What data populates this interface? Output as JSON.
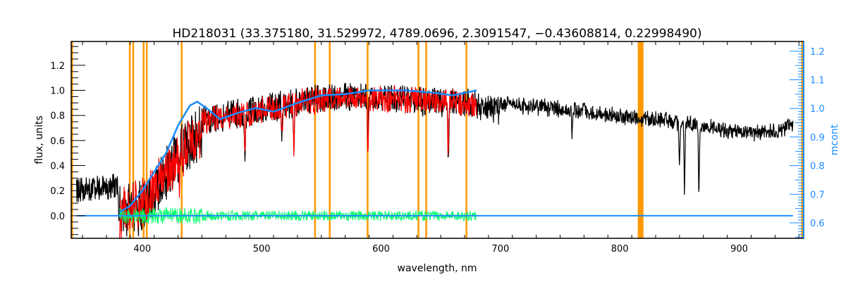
{
  "chart_data": {
    "type": "line",
    "title": "HD218031   (33.375180, 31.529972, 4789.0696, 2.3091547, −0.43608814, 0.22998490)",
    "xlabel": "wavelength, nm",
    "ylabel": "flux, units",
    "y2label": "mcont",
    "xlim": [
      340.5,
      954
    ],
    "ylim": [
      -0.18,
      1.39
    ],
    "y2lim": [
      0.546,
      1.234
    ],
    "xticks": [
      400,
      500,
      600,
      700,
      800,
      900
    ],
    "yticks": [
      0.0,
      0.2,
      0.4,
      0.6,
      0.8,
      1.0,
      1.2
    ],
    "y2ticks": [
      0.6,
      0.7,
      0.8,
      0.9,
      1.0,
      1.1,
      1.2
    ],
    "colors": {
      "observed": "#000000",
      "model": "#ff0000",
      "residual": "#00ff66",
      "continuum": "#1a8cff",
      "masks": "#ff9900",
      "axis2": "#1a8cff"
    },
    "series": [
      {
        "name": "observed flux",
        "range": [
          345,
          945
        ],
        "envelope": [
          [
            345,
            0.2
          ],
          [
            380,
            0.24
          ],
          [
            400,
            0.32
          ],
          [
            420,
            0.55
          ],
          [
            435,
            0.75
          ],
          [
            450,
            0.88
          ],
          [
            480,
            0.92
          ],
          [
            520,
            1.0
          ],
          [
            560,
            1.06
          ],
          [
            600,
            1.06
          ],
          [
            640,
            1.03
          ],
          [
            680,
            0.99
          ],
          [
            720,
            0.93
          ],
          [
            760,
            0.9
          ],
          [
            800,
            0.85
          ],
          [
            850,
            0.8
          ],
          [
            900,
            0.72
          ],
          [
            930,
            0.72
          ],
          [
            945,
            0.78
          ]
        ]
      },
      {
        "name": "model flux",
        "range": [
          381,
          680
        ],
        "envelope": [
          [
            381,
            0.22
          ],
          [
            400,
            0.3
          ],
          [
            420,
            0.53
          ],
          [
            435,
            0.73
          ],
          [
            450,
            0.86
          ],
          [
            480,
            0.9
          ],
          [
            520,
            0.98
          ],
          [
            560,
            1.04
          ],
          [
            600,
            1.04
          ],
          [
            640,
            1.02
          ],
          [
            680,
            0.98
          ]
        ]
      },
      {
        "name": "residual",
        "range": [
          381,
          680
        ],
        "center": 0.0,
        "amplitude": 0.05
      },
      {
        "name": "continuum (mcont)",
        "points": [
          [
            381,
            0.03
          ],
          [
            390,
            0.08
          ],
          [
            400,
            0.2
          ],
          [
            410,
            0.35
          ],
          [
            420,
            0.5
          ],
          [
            430,
            0.72
          ],
          [
            440,
            0.88
          ],
          [
            446,
            0.91
          ],
          [
            455,
            0.85
          ],
          [
            465,
            0.77
          ],
          [
            480,
            0.82
          ],
          [
            495,
            0.86
          ],
          [
            510,
            0.83
          ],
          [
            530,
            0.9
          ],
          [
            550,
            0.96
          ],
          [
            570,
            0.97
          ],
          [
            590,
            1.0
          ],
          [
            620,
            1.0
          ],
          [
            645,
            0.98
          ],
          [
            660,
            0.96
          ],
          [
            670,
            0.98
          ],
          [
            680,
            1.0
          ]
        ]
      },
      {
        "name": "zero line",
        "range": [
          345,
          945
        ],
        "value": 0.0
      }
    ],
    "absorption_lines": [
      [
        393.4,
        0.35
      ],
      [
        396.8,
        0.3
      ],
      [
        430.8,
        0.25
      ],
      [
        486.1,
        0.35
      ],
      [
        517,
        0.3
      ],
      [
        527,
        0.35
      ],
      [
        589.0,
        0.4
      ],
      [
        656.3,
        0.45
      ],
      [
        760,
        0.2
      ],
      [
        850,
        0.4
      ],
      [
        854.2,
        0.7
      ],
      [
        866.2,
        0.7
      ]
    ],
    "mask_regions": [
      [
        340.5,
        342
      ],
      [
        388.8,
        389.4
      ],
      [
        391.7,
        392.3
      ],
      [
        400.4,
        401
      ],
      [
        403,
        403.6
      ],
      [
        432.3,
        433
      ],
      [
        544,
        544.6
      ],
      [
        556.3,
        556.9
      ],
      [
        588,
        589.5
      ],
      [
        630.6,
        631.3
      ],
      [
        637.1,
        637.7
      ],
      [
        670.8,
        671.4
      ],
      [
        815,
        819.8
      ],
      [
        952,
        954
      ]
    ]
  }
}
